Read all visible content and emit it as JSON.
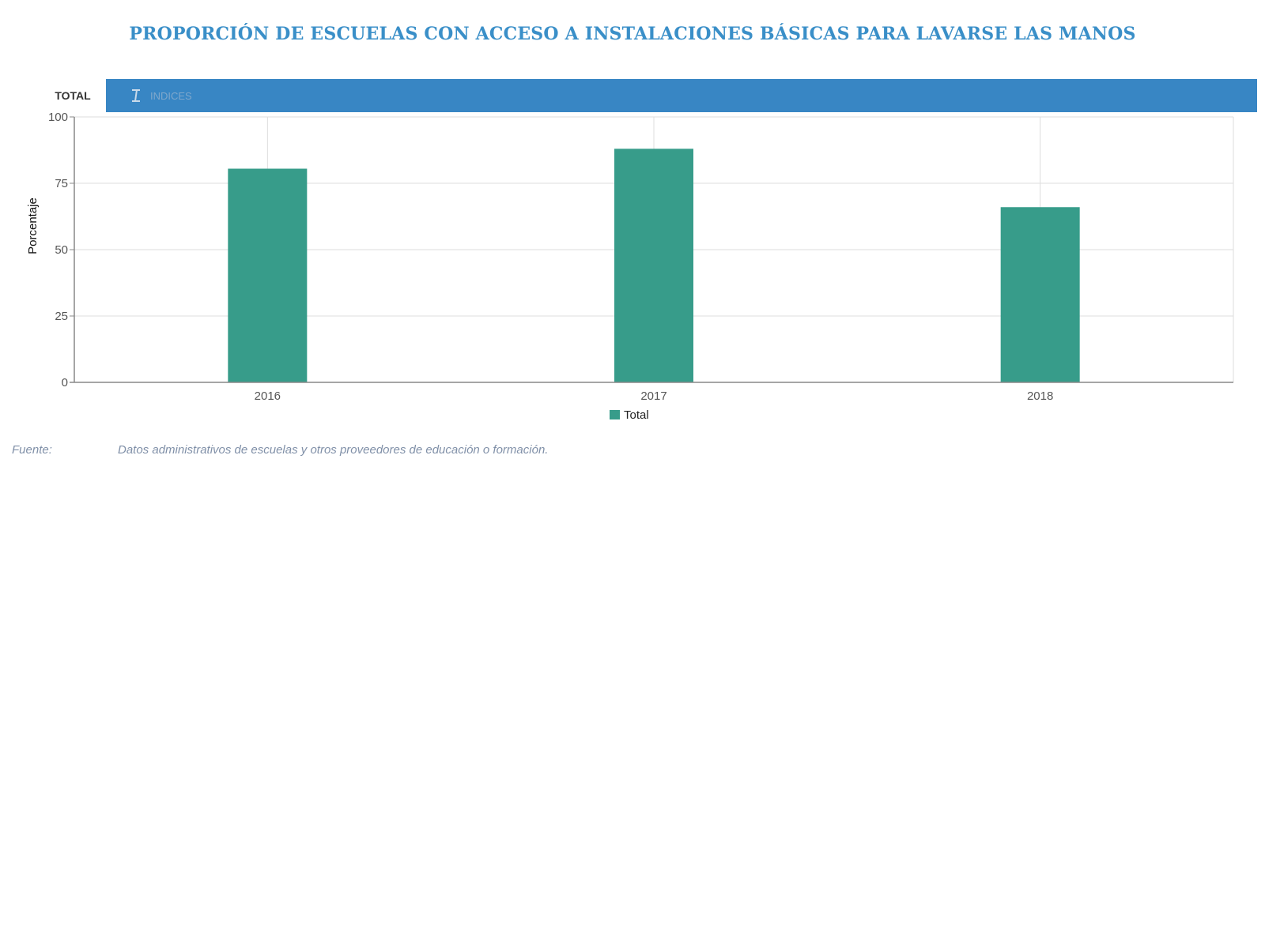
{
  "title": "PROPORCIÓN DE ESCUELAS CON ACCESO A INSTALACIONES BÁSICAS PARA LAVARSE LAS MANOS",
  "tabs": {
    "total": "TOTAL",
    "indices": "INDICES"
  },
  "source": {
    "label": "Fuente:",
    "text": "Datos administrativos de escuelas y otros proveedores de educación o formación."
  },
  "colors": {
    "title": "#3a8fc8",
    "tab_strip": "#3886c4",
    "bar": "#379c8a"
  },
  "chart_data": {
    "type": "bar",
    "categories": [
      "2016",
      "2017",
      "2018"
    ],
    "series": [
      {
        "name": "Total",
        "values": [
          80.5,
          88,
          66
        ]
      }
    ],
    "title": "PROPORCIÓN DE ESCUELAS CON ACCESO A INSTALACIONES BÁSICAS PARA LAVARSE LAS MANOS",
    "xlabel": "",
    "ylabel": "Porcentaje",
    "ylim": [
      0,
      100
    ],
    "yticks": [
      0,
      25,
      50,
      75,
      100
    ],
    "grid": true,
    "legend": "bottom-center"
  }
}
